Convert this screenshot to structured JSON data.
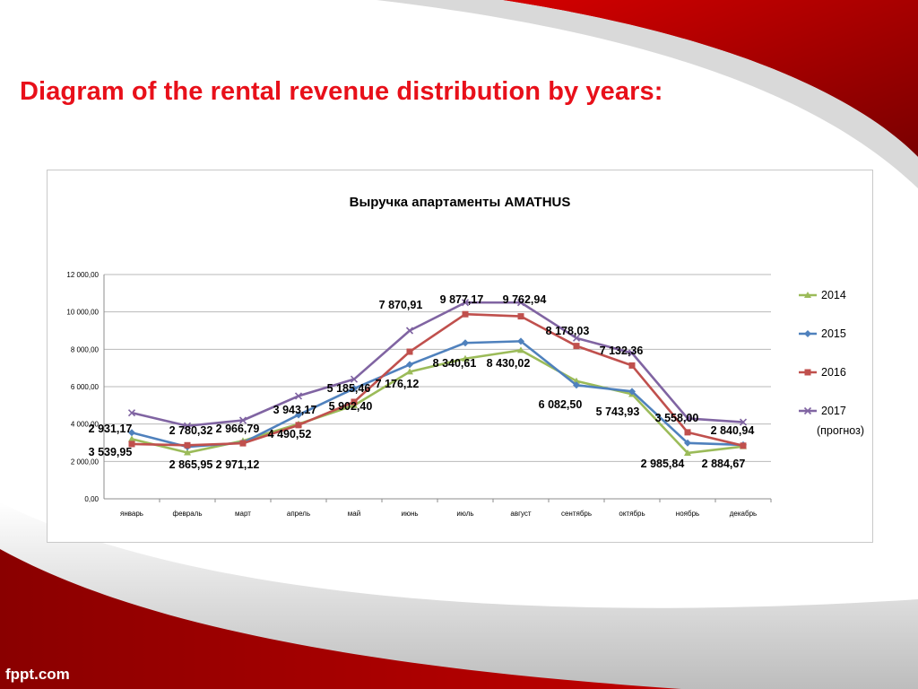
{
  "slide": {
    "title": "Diagram of the rental revenue distribution by years:",
    "brand": "fppt.com"
  },
  "colors": {
    "title_red": "#e8101a",
    "banner_red": "#b00000",
    "series_2014": "#9bbb59",
    "series_2015": "#4f81bd",
    "series_2016": "#c0504d",
    "series_2017": "#8064a2"
  },
  "chart_data": {
    "type": "line",
    "title": "Выручка апартаменты AMATHUS",
    "xlabel": "",
    "ylabel": "",
    "categories": [
      "январь",
      "февраль",
      "март",
      "апрель",
      "май",
      "июнь",
      "июль",
      "август",
      "сентябрь",
      "октябрь",
      "ноябрь",
      "декабрь"
    ],
    "ylim": [
      0,
      12000
    ],
    "yticks": [
      "0,00",
      "2 000,00",
      "4 000,00",
      "6 000,00",
      "8 000,00",
      "10 000,00",
      "12 000,00"
    ],
    "grid": true,
    "legend_position": "right",
    "legend_note": "(прогноз)",
    "series": [
      {
        "name": "2014",
        "marker": "triangle",
        "values": [
          3200,
          2470,
          3100,
          4000,
          5000,
          6800,
          7500,
          7950,
          6300,
          5600,
          2450,
          2800
        ]
      },
      {
        "name": "2015",
        "marker": "diamond",
        "values": [
          3540,
          2780,
          3000,
          4490,
          5900,
          7180,
          8340.61,
          8430.02,
          6082.5,
          5743.93,
          2985.84,
          2884.67
        ]
      },
      {
        "name": "2016",
        "marker": "square",
        "values": [
          2931.17,
          2865.95,
          2971.12,
          3943.17,
          5185.46,
          7870.91,
          9877.17,
          9762.94,
          8178.03,
          7132.36,
          3558.0,
          2840.94
        ]
      },
      {
        "name": "2017",
        "marker": "x",
        "values": [
          4600,
          3900,
          4200,
          5500,
          6400,
          9000,
          10500,
          10500,
          8600,
          7800,
          4300,
          4100
        ]
      }
    ],
    "data_labels": [
      "2 931,17",
      "3 539,95",
      "2 780,32",
      "2 865,95",
      "2 966,79",
      "2 971,12",
      "3 943,17",
      "4 490,52",
      "5 185,46",
      "5 902,40",
      "7 870,91",
      "7 176,12",
      "9 877,17",
      "8 340,61",
      "9 762,94",
      "8 430,02",
      "8 178,03",
      "6 082,50",
      "7 132,36",
      "5 743,93",
      "3 558,00",
      "2 985,84",
      "2 840,94",
      "2 884,67"
    ]
  }
}
